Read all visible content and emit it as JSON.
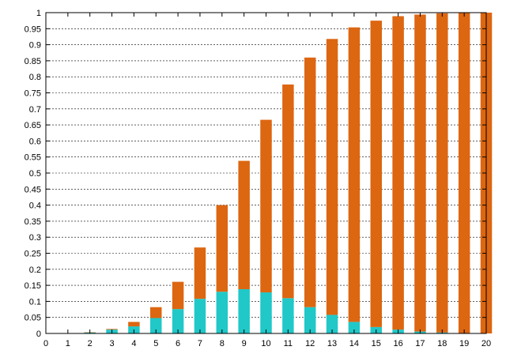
{
  "chart_data": {
    "type": "bar",
    "stacked": true,
    "title": "",
    "xlabel": "",
    "ylabel": "",
    "xlim": [
      0,
      20
    ],
    "ylim": [
      0,
      1
    ],
    "grid": "horizontal-dashed",
    "x_ticks": [
      "0",
      "1",
      "2",
      "3",
      "4",
      "5",
      "6",
      "7",
      "8",
      "9",
      "10",
      "11",
      "12",
      "13",
      "14",
      "15",
      "16",
      "17",
      "18",
      "19",
      "20"
    ],
    "y_ticks": [
      "0",
      "0.05",
      "0.1",
      "0.15",
      "0.2",
      "0.25",
      "0.3",
      "0.35",
      "0.4",
      "0.45",
      "0.5",
      "0.55",
      "0.6",
      "0.65",
      "0.7",
      "0.75",
      "0.8",
      "0.85",
      "0.9",
      "0.95",
      "1"
    ],
    "categories": [
      1,
      2,
      3,
      4,
      5,
      6,
      7,
      8,
      9,
      10,
      11,
      12,
      13,
      14,
      15,
      16,
      17,
      18,
      19,
      20
    ],
    "series": [
      {
        "color": "#20c8c8",
        "values": [
          0.0,
          0.003,
          0.012,
          0.022,
          0.048,
          0.076,
          0.108,
          0.13,
          0.138,
          0.128,
          0.11,
          0.082,
          0.058,
          0.036,
          0.02,
          0.012,
          0.006,
          0.003,
          0.001,
          0.0
        ]
      },
      {
        "color": "#dd6611",
        "values": [
          0.0,
          0.001,
          0.002,
          0.014,
          0.034,
          0.085,
          0.16,
          0.27,
          0.4,
          0.538,
          0.666,
          0.778,
          0.86,
          0.918,
          0.955,
          0.977,
          0.988,
          0.995,
          0.999,
          1.0
        ]
      }
    ]
  }
}
